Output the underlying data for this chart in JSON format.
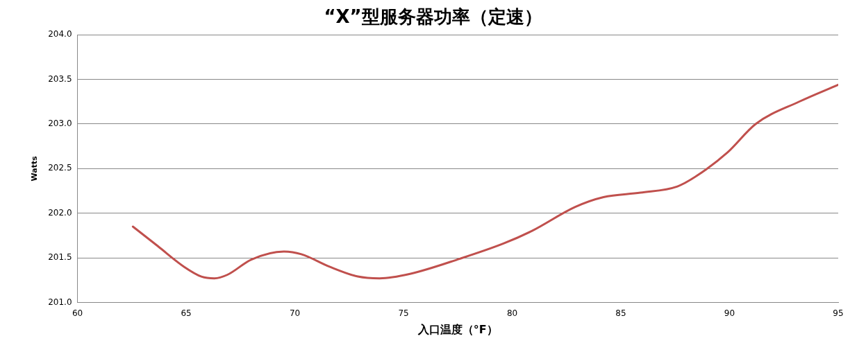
{
  "chart_data": {
    "type": "line",
    "title": "“X”型服务器功率（定速）",
    "xlabel": "入口温度（°F）",
    "ylabel": "Watts",
    "x": [
      62.55,
      63.7,
      64.9,
      65.7,
      66.3,
      66.9,
      68.0,
      69.5,
      70.3,
      71.6,
      72.9,
      73.9,
      75.3,
      77.6,
      79.6,
      80.9,
      82.9,
      84.2,
      85.9,
      87.6,
      88.5,
      89.9,
      91.2,
      93.2,
      95.0
    ],
    "series": [
      {
        "color": "#c0504d",
        "values": [
          201.85,
          201.63,
          201.4,
          201.29,
          201.27,
          201.31,
          201.48,
          201.57,
          201.54,
          201.4,
          201.29,
          201.27,
          201.32,
          201.49,
          201.66,
          201.8,
          202.07,
          202.18,
          202.23,
          202.3,
          202.42,
          202.68,
          203.0,
          203.25,
          203.44
        ]
      }
    ],
    "xlim": [
      60,
      95
    ],
    "xticks": [
      60,
      65,
      70,
      75,
      80,
      85,
      90,
      95
    ],
    "ylim": [
      201,
      204
    ],
    "yticks": [
      {
        "value": 201,
        "label": "201.0"
      },
      {
        "value": 201.5,
        "label": "201.5"
      },
      {
        "value": 202,
        "label": "202.0"
      },
      {
        "value": 202.5,
        "label": "202.5"
      },
      {
        "value": 203,
        "label": "203.0"
      },
      {
        "value": 203.5,
        "label": "203.5"
      },
      {
        "value": 204,
        "label": "204.0"
      }
    ],
    "grid": "y",
    "marker": "none",
    "line_style": "solid",
    "legend": false
  }
}
